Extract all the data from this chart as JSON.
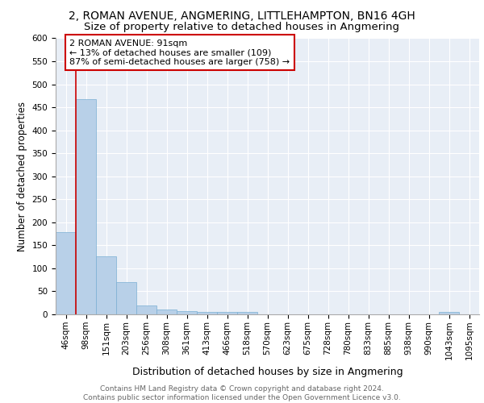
{
  "title1": "2, ROMAN AVENUE, ANGMERING, LITTLEHAMPTON, BN16 4GH",
  "title2": "Size of property relative to detached houses in Angmering",
  "xlabel": "Distribution of detached houses by size in Angmering",
  "ylabel": "Number of detached properties",
  "categories": [
    "46sqm",
    "98sqm",
    "151sqm",
    "203sqm",
    "256sqm",
    "308sqm",
    "361sqm",
    "413sqm",
    "466sqm",
    "518sqm",
    "570sqm",
    "623sqm",
    "675sqm",
    "728sqm",
    "780sqm",
    "833sqm",
    "885sqm",
    "938sqm",
    "990sqm",
    "1043sqm",
    "1095sqm"
  ],
  "values": [
    178,
    468,
    126,
    70,
    20,
    10,
    7,
    6,
    5,
    6,
    0,
    0,
    0,
    0,
    0,
    0,
    0,
    0,
    0,
    6,
    0
  ],
  "bar_color": "#b8d0e8",
  "bar_edgecolor": "#7aafd4",
  "background_color": "#e8eef6",
  "vline_color": "#cc0000",
  "annotation_text": "2 ROMAN AVENUE: 91sqm\n← 13% of detached houses are smaller (109)\n87% of semi-detached houses are larger (758) →",
  "annotation_box_color": "white",
  "annotation_box_edgecolor": "#cc0000",
  "ylim": [
    0,
    600
  ],
  "yticks": [
    0,
    50,
    100,
    150,
    200,
    250,
    300,
    350,
    400,
    450,
    500,
    550,
    600
  ],
  "footer_text": "Contains HM Land Registry data © Crown copyright and database right 2024.\nContains public sector information licensed under the Open Government Licence v3.0.",
  "title1_fontsize": 10,
  "title2_fontsize": 9.5,
  "xlabel_fontsize": 9,
  "ylabel_fontsize": 8.5,
  "tick_fontsize": 7.5,
  "annotation_fontsize": 8,
  "footer_fontsize": 6.5
}
